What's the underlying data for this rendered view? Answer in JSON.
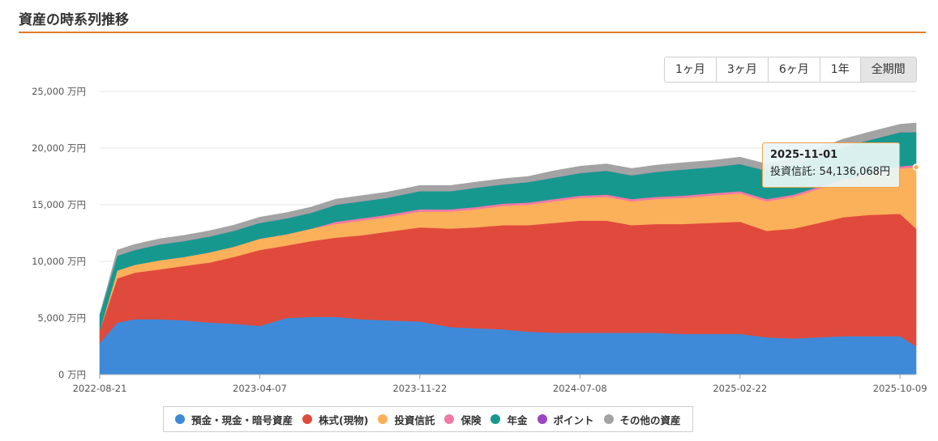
{
  "header": {
    "title": "資産の時系列推移"
  },
  "range_buttons": [
    {
      "label": "1ヶ月",
      "active": false
    },
    {
      "label": "3ヶ月",
      "active": false
    },
    {
      "label": "6ヶ月",
      "active": false
    },
    {
      "label": "1年",
      "active": false
    },
    {
      "label": "全期間",
      "active": true
    }
  ],
  "tooltip": {
    "date": "2025-11-01",
    "text": "投資信託: 54,136,068円"
  },
  "chart_data": {
    "type": "area",
    "stacked": true,
    "y_unit": "万円",
    "ylim": [
      0,
      25000
    ],
    "y_ticks": [
      "25,000 万円",
      "20,000 万円",
      "15,000 万円",
      "10,000 万円",
      "5,000 万円",
      "0 万円"
    ],
    "x_ticks": [
      "2022-08-21",
      "2023-04-07",
      "2023-11-22",
      "2024-07-08",
      "2025-02-22",
      "2025-10-09"
    ],
    "x": [
      "2022-08-21",
      "2022-09-15",
      "2022-10-10",
      "2022-11-15",
      "2022-12-20",
      "2023-01-25",
      "2023-03-01",
      "2023-04-07",
      "2023-05-15",
      "2023-06-20",
      "2023-07-25",
      "2023-08-30",
      "2023-10-05",
      "2023-11-22",
      "2024-01-05",
      "2024-02-10",
      "2024-03-20",
      "2024-04-25",
      "2024-06-01",
      "2024-07-08",
      "2024-08-15",
      "2024-09-20",
      "2024-10-25",
      "2024-12-01",
      "2025-01-10",
      "2025-02-22",
      "2025-04-01",
      "2025-05-10",
      "2025-06-15",
      "2025-07-20",
      "2025-08-25",
      "2025-10-09",
      "2025-11-01"
    ],
    "series": [
      {
        "name": "預金・現金・暗号資産",
        "color": "#3e8ad8",
        "values": [
          2800,
          4600,
          4900,
          4900,
          4800,
          4600,
          4500,
          4300,
          5000,
          5100,
          5100,
          4900,
          4800,
          4700,
          4200,
          4100,
          4000,
          3800,
          3700,
          3700,
          3700,
          3700,
          3700,
          3600,
          3600,
          3600,
          3300,
          3200,
          3300,
          3400,
          3400,
          3400,
          2500
        ]
      },
      {
        "name": "株式(現物)",
        "color": "#e04a3c",
        "values": [
          1100,
          3900,
          4100,
          4400,
          4800,
          5300,
          5900,
          6700,
          6400,
          6700,
          7000,
          7400,
          7800,
          8300,
          8700,
          8900,
          9200,
          9400,
          9700,
          9900,
          9900,
          9500,
          9600,
          9700,
          9800,
          9900,
          9400,
          9700,
          10100,
          10500,
          10700,
          10800,
          10400
        ]
      },
      {
        "name": "投資信託",
        "color": "#fbb05a",
        "values": [
          0,
          700,
          700,
          800,
          800,
          900,
          900,
          1000,
          1000,
          1100,
          1200,
          1300,
          1300,
          1400,
          1500,
          1600,
          1700,
          1800,
          1900,
          2000,
          2100,
          2100,
          2200,
          2300,
          2400,
          2500,
          2600,
          2800,
          3000,
          3200,
          3500,
          4000,
          5414
        ]
      },
      {
        "name": "保険",
        "color": "#f07aa5",
        "values": [
          0,
          0,
          0,
          0,
          0,
          0,
          0,
          0,
          0,
          0,
          200,
          200,
          200,
          200,
          200,
          200,
          200,
          200,
          200,
          200,
          200,
          200,
          200,
          200,
          200,
          200,
          200,
          200,
          200,
          200,
          200,
          200,
          200
        ]
      },
      {
        "name": "年金",
        "color": "#17988f",
        "values": [
          1400,
          1300,
          1300,
          1400,
          1400,
          1400,
          1400,
          1400,
          1400,
          1400,
          1500,
          1500,
          1500,
          1600,
          1600,
          1700,
          1700,
          1800,
          1900,
          2000,
          2100,
          2100,
          2200,
          2300,
          2300,
          2400,
          2500,
          2600,
          2700,
          2800,
          2900,
          3000,
          2900
        ]
      },
      {
        "name": "ポイント",
        "color": "#9b45c2",
        "values": [
          0,
          0,
          0,
          0,
          0,
          0,
          0,
          0,
          0,
          0,
          0,
          0,
          0,
          0,
          0,
          0,
          0,
          0,
          0,
          0,
          0,
          0,
          0,
          0,
          0,
          0,
          0,
          0,
          0,
          0,
          0,
          0,
          0
        ]
      },
      {
        "name": "その他の資産",
        "color": "#a3a3a3",
        "values": [
          0,
          500,
          500,
          500,
          500,
          500,
          500,
          500,
          500,
          500,
          500,
          500,
          500,
          500,
          500,
          500,
          500,
          500,
          600,
          600,
          600,
          600,
          600,
          600,
          600,
          600,
          600,
          600,
          700,
          700,
          700,
          700,
          800
        ]
      }
    ],
    "grid": true,
    "legend_position": "bottom"
  },
  "legend": [
    {
      "label": "預金・現金・暗号資産",
      "color": "#3e8ad8"
    },
    {
      "label": "株式(現物)",
      "color": "#e04a3c"
    },
    {
      "label": "投資信託",
      "color": "#fbb05a"
    },
    {
      "label": "保険",
      "color": "#f07aa5"
    },
    {
      "label": "年金",
      "color": "#17988f"
    },
    {
      "label": "ポイント",
      "color": "#9b45c2"
    },
    {
      "label": "その他の資産",
      "color": "#a3a3a3"
    }
  ]
}
